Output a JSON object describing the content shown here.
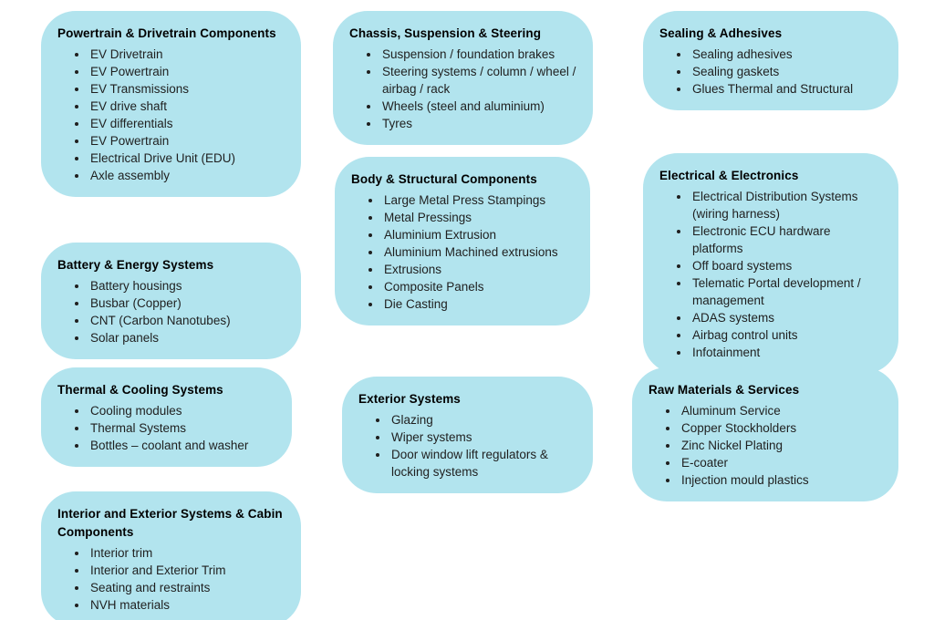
{
  "colors": {
    "card_fill": "#b2e4ee",
    "title_color": "#000000",
    "item_color": "#1f1f1f",
    "page_background": "#ffffff"
  },
  "cards": [
    {
      "title": "Powertrain & Drivetrain Components",
      "items": [
        "EV Drivetrain",
        "EV Powertrain",
        "EV Transmissions",
        "EV drive shaft",
        "EV differentials",
        "EV Powertrain",
        "Electrical Drive Unit (EDU)",
        "Axle assembly"
      ]
    },
    {
      "title": "Battery & Energy Systems",
      "items": [
        "Battery housings",
        "Busbar (Copper)",
        "CNT (Carbon Nanotubes)",
        "Solar panels"
      ]
    },
    {
      "title": "Thermal & Cooling Systems",
      "items": [
        "Cooling modules",
        "Thermal Systems",
        "Bottles – coolant and washer"
      ]
    },
    {
      "title": "Interior and Exterior Systems & Cabin Components",
      "items": [
        "Interior trim",
        "Interior and Exterior Trim",
        "Seating and restraints",
        "NVH materials"
      ]
    },
    {
      "title": "Chassis, Suspension & Steering",
      "items": [
        "Suspension / foundation brakes",
        "Steering systems / column / wheel / airbag / rack",
        "Wheels (steel and aluminium)",
        "Tyres"
      ]
    },
    {
      "title": "Body & Structural Components",
      "items": [
        "Large Metal Press Stampings",
        "Metal Pressings",
        "Aluminium Extrusion",
        "Aluminium Machined extrusions",
        "Extrusions",
        "Composite Panels",
        "Die Casting"
      ]
    },
    {
      "title": "Exterior Systems",
      "items": [
        "Glazing",
        "Wiper systems",
        "Door window lift regulators & locking systems"
      ]
    },
    {
      "title": "Sealing & Adhesives",
      "items": [
        "Sealing adhesives",
        "Sealing gaskets",
        "Glues Thermal and Structural"
      ]
    },
    {
      "title": "Electrical & Electronics",
      "items": [
        "Electrical Distribution Systems (wiring harness)",
        "Electronic ECU hardware platforms",
        "Off board systems",
        "Telematic Portal development / management",
        "ADAS systems",
        "Airbag control units",
        "Infotainment"
      ]
    },
    {
      "title": "Raw Materials & Services",
      "items": [
        "Aluminum Service",
        "Copper Stockholders",
        "Zinc Nickel Plating",
        "E-coater",
        "Injection mould plastics"
      ]
    }
  ]
}
